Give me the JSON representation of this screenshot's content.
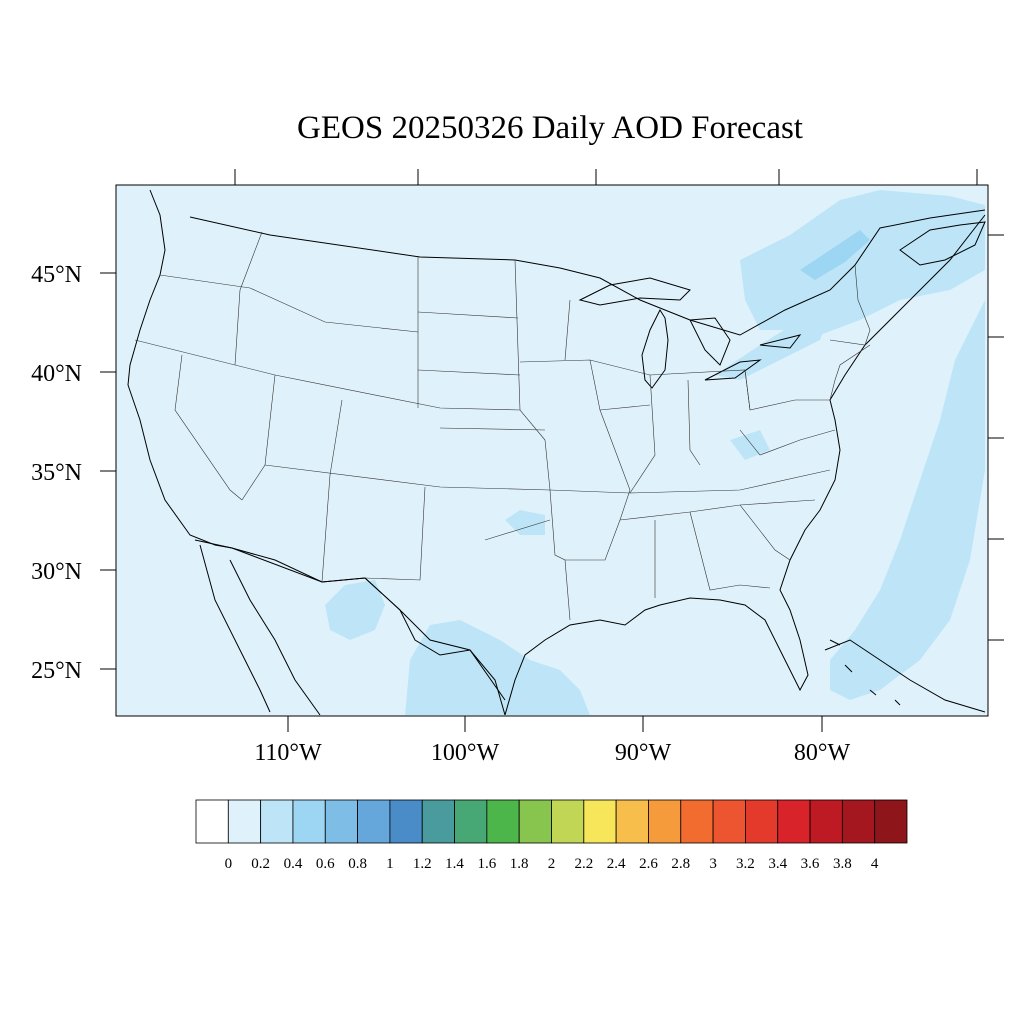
{
  "title": "GEOS 20250326 Daily AOD Forecast",
  "map": {
    "region": "Contiguous United States",
    "variable": "Aerosol Optical Depth",
    "background_color": "#dff2fb",
    "coastline_color": "#000000",
    "state_border_color": "#333333",
    "lat_labels": [
      "45°N",
      "40°N",
      "35°N",
      "30°N",
      "25°N"
    ],
    "lon_labels": [
      "110°W",
      "100°W",
      "90°W",
      "80°W"
    ],
    "aod_features": [
      {
        "name": "Gulf of Maine / Canada plume",
        "level": 0.4
      },
      {
        "name": "Atlantic offshore band",
        "level": 0.4
      },
      {
        "name": "South Texas / Gulf coast",
        "level": 0.4
      },
      {
        "name": "Northern Mexico patch",
        "level": 0.4
      },
      {
        "name": "Oklahoma/Texas patch",
        "level": 0.4
      },
      {
        "name": "Great Lakes band",
        "level": 0.4
      },
      {
        "name": "Bahamas region",
        "level": 0.4
      }
    ]
  },
  "colorbar": {
    "labels": [
      "0",
      "0.2",
      "0.4",
      "0.6",
      "0.8",
      "1",
      "1.2",
      "1.4",
      "1.6",
      "1.8",
      "2",
      "2.2",
      "2.4",
      "2.6",
      "2.8",
      "3",
      "3.2",
      "3.4",
      "3.6",
      "3.8",
      "4"
    ],
    "colors": [
      "#ffffff",
      "#dff2fb",
      "#bde5f7",
      "#9dd6f3",
      "#7ebde6",
      "#66a7db",
      "#4a8cc7",
      "#4a9b9e",
      "#48a875",
      "#4cb64a",
      "#87c54e",
      "#c1d654",
      "#f7e65a",
      "#f8be4b",
      "#f69b3c",
      "#f36c2f",
      "#ec5530",
      "#e33a2b",
      "#d8232a",
      "#bd1a23",
      "#a5171e",
      "#8e1519"
    ]
  }
}
